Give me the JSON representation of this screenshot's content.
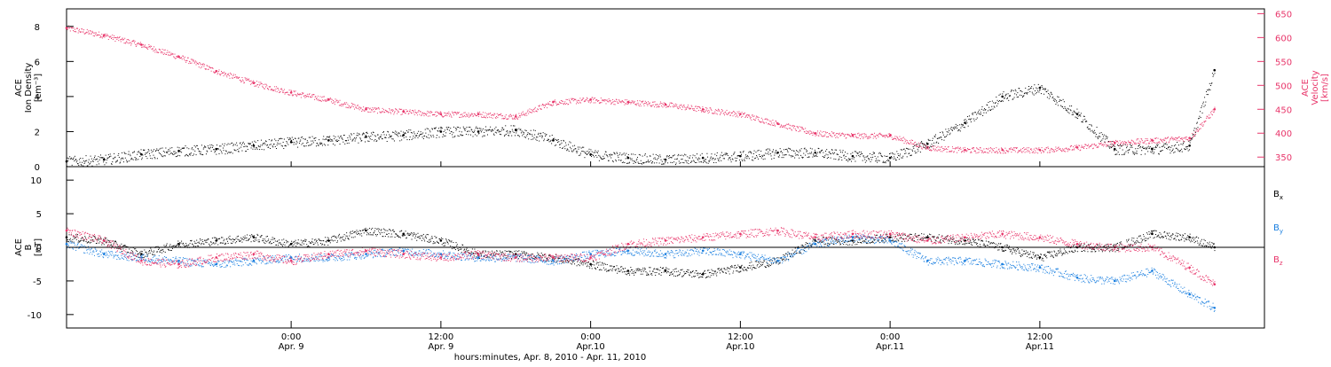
{
  "colors": {
    "density": "#000000",
    "velocity": "#e8356a",
    "bx": "#000000",
    "by": "#1a7fe0",
    "bz": "#e8356a",
    "axis": "#000000"
  },
  "chart_data": [
    {
      "type": "scatter",
      "panel": "top",
      "ylabel_left": [
        "ACE",
        "Ion Density",
        "[cm⁻³]"
      ],
      "ylabel_right": [
        "ACE",
        "Velocity",
        "[km/s]"
      ],
      "x_range_hours": [
        -18,
        78
      ],
      "y_left_range": [
        0,
        9
      ],
      "y_left_ticks": [
        0,
        2,
        4,
        6,
        8
      ],
      "y_right_range": [
        330,
        660
      ],
      "y_right_ticks": [
        350,
        400,
        450,
        500,
        550,
        600,
        650
      ],
      "series": [
        {
          "key": "density",
          "axis": "left",
          "x": [
            -18,
            -15,
            -12,
            -9,
            -6,
            -3,
            0,
            3,
            6,
            9,
            12,
            15,
            18,
            21,
            24,
            27,
            30,
            33,
            36,
            39,
            42,
            45,
            48,
            51,
            54,
            57,
            60,
            63,
            66,
            69,
            72,
            74
          ],
          "y": [
            0.3,
            0.4,
            0.7,
            0.9,
            1.0,
            1.2,
            1.4,
            1.5,
            1.7,
            1.8,
            2.0,
            2.0,
            2.1,
            1.5,
            0.7,
            0.5,
            0.4,
            0.5,
            0.6,
            0.8,
            0.8,
            0.6,
            0.5,
            1.3,
            2.5,
            4.0,
            4.5,
            3.0,
            1.0,
            1.0,
            1.2,
            5.5
          ]
        },
        {
          "key": "velocity",
          "axis": "right",
          "x": [
            -18,
            -15,
            -12,
            -9,
            -6,
            -3,
            0,
            3,
            6,
            9,
            12,
            15,
            18,
            21,
            24,
            27,
            30,
            33,
            36,
            39,
            42,
            45,
            48,
            51,
            54,
            57,
            60,
            63,
            66,
            69,
            72,
            74
          ],
          "y": [
            620,
            605,
            585,
            560,
            530,
            505,
            485,
            470,
            450,
            445,
            440,
            440,
            435,
            465,
            470,
            465,
            460,
            450,
            440,
            420,
            400,
            395,
            395,
            370,
            365,
            365,
            365,
            370,
            380,
            385,
            390,
            450
          ]
        }
      ]
    },
    {
      "type": "scatter",
      "panel": "bottom",
      "ylabel_left": [
        "ACE",
        "B",
        "[nT]"
      ],
      "x_range_hours": [
        -18,
        78
      ],
      "y_range": [
        -12,
        12
      ],
      "y_ticks": [
        -10,
        -5,
        0,
        5,
        10
      ],
      "legend": [
        "Bx",
        "By",
        "Bz"
      ],
      "series": [
        {
          "key": "bx",
          "name": "Bx",
          "x": [
            -18,
            -15,
            -12,
            -9,
            -6,
            -3,
            0,
            3,
            6,
            9,
            12,
            15,
            18,
            21,
            24,
            27,
            30,
            33,
            36,
            39,
            42,
            45,
            48,
            51,
            54,
            57,
            60,
            63,
            66,
            69,
            72,
            74
          ],
          "y": [
            1.5,
            1.0,
            -1.0,
            0.5,
            1.0,
            1.5,
            0.5,
            1.0,
            2.5,
            2.0,
            1.0,
            -1.0,
            -1.0,
            -1.5,
            -2.5,
            -3.5,
            -3.5,
            -4.0,
            -3.0,
            -2.0,
            1.0,
            1.0,
            1.5,
            1.5,
            1.0,
            0.0,
            -1.5,
            0.0,
            0.0,
            2.0,
            1.5,
            0.0
          ]
        },
        {
          "key": "by",
          "name": "By",
          "x": [
            -18,
            -15,
            -12,
            -9,
            -6,
            -3,
            0,
            3,
            6,
            9,
            12,
            15,
            18,
            21,
            24,
            27,
            30,
            33,
            36,
            39,
            42,
            45,
            48,
            51,
            54,
            57,
            60,
            63,
            66,
            69,
            72,
            74
          ],
          "y": [
            0.5,
            -1.0,
            -1.5,
            -2.0,
            -2.5,
            -2.0,
            -1.5,
            -1.5,
            -1.0,
            -0.5,
            -1.0,
            -1.5,
            -1.5,
            -2.0,
            -1.0,
            -0.5,
            -1.0,
            -0.5,
            -1.0,
            -2.0,
            0.5,
            1.5,
            1.0,
            -2.0,
            -2.0,
            -2.5,
            -3.0,
            -4.5,
            -5.0,
            -3.5,
            -7.0,
            -9.0
          ]
        },
        {
          "key": "bz",
          "name": "Bz",
          "x": [
            -18,
            -15,
            -12,
            -9,
            -6,
            -3,
            0,
            3,
            6,
            9,
            12,
            15,
            18,
            21,
            24,
            27,
            30,
            33,
            36,
            39,
            42,
            45,
            48,
            51,
            54,
            57,
            60,
            63,
            66,
            69,
            72,
            74
          ],
          "y": [
            2.5,
            1.0,
            -2.0,
            -2.5,
            -1.5,
            -1.0,
            -2.0,
            -1.0,
            -0.5,
            -1.0,
            -1.5,
            -1.0,
            -1.5,
            -1.5,
            -1.5,
            0.5,
            1.0,
            1.5,
            2.0,
            2.5,
            1.5,
            2.0,
            2.0,
            1.0,
            1.5,
            2.0,
            1.5,
            0.5,
            0.0,
            0.0,
            -3.0,
            -5.5
          ]
        }
      ]
    }
  ],
  "x_axis": {
    "ticks_hours": [
      0,
      12,
      24,
      36,
      48,
      60
    ],
    "tick_labels_line1": [
      "0:00",
      "12:00",
      "0:00",
      "12:00",
      "0:00",
      "12:00"
    ],
    "tick_labels_line2": [
      "Apr. 9",
      "Apr. 9",
      "Apr.10",
      "Apr.10",
      "Apr.11",
      "Apr.11"
    ],
    "xlabel": "hours:minutes, Apr.  8, 2010 - Apr. 11, 2010"
  }
}
